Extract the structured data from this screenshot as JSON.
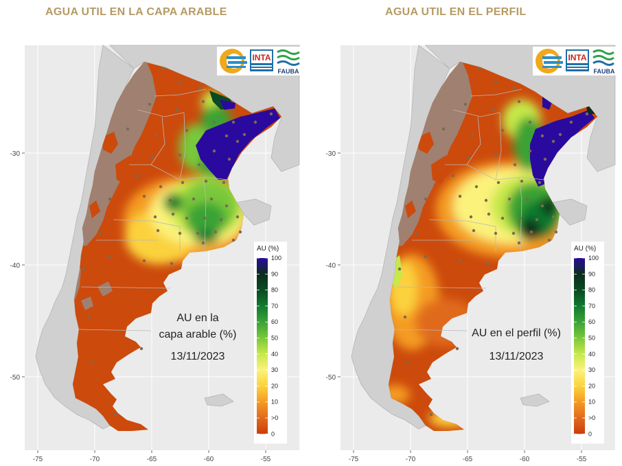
{
  "panels": [
    {
      "title": "AGUA UTIL EN LA CAPA ARABLE",
      "annotation": [
        "AU en la",
        "capa arable (%)",
        "13/11/2023"
      ],
      "logos": {
        "inta": "INTA",
        "fauba": "FAUBA"
      }
    },
    {
      "title": "AGUA UTIL EN EL PERFIL",
      "annotation": [
        "AU en el perfil (%)",
        "13/11/2023"
      ],
      "logos": {
        "inta": "INTA",
        "fauba": "FAUBA"
      }
    }
  ],
  "axes": {
    "x_ticks": [
      "-75",
      "-70",
      "-65",
      "-60",
      "-55"
    ],
    "y_ticks": [
      "-30",
      "-40",
      "-50"
    ]
  },
  "legend": {
    "title": "AU (%)",
    "entries": [
      {
        "label": "100",
        "color": "#2a0a9e"
      },
      {
        "label": "90",
        "color": "#0b2e1b"
      },
      {
        "label": "80",
        "color": "#0a4a22"
      },
      {
        "label": "70",
        "color": "#117a2e"
      },
      {
        "label": "60",
        "color": "#3aa336"
      },
      {
        "label": "50",
        "color": "#79c83a"
      },
      {
        "label": "40",
        "color": "#c6e84a"
      },
      {
        "label": "30",
        "color": "#fbf27c"
      },
      {
        "label": "20",
        "color": "#fbd23c"
      },
      {
        "label": "10",
        "color": "#f49b24"
      },
      {
        "label": ">0",
        "color": "#e06a1e"
      },
      {
        "label": "0",
        "color": "#cc3d0a"
      }
    ]
  },
  "colors": {
    "title": "#b59a63",
    "panel_bg": "#ebebeb",
    "land_other": "#cccccc",
    "andes": "#a08070",
    "dry": "#cc4a0c",
    "station": "#7e6a50",
    "grid": "#ffffff"
  }
}
